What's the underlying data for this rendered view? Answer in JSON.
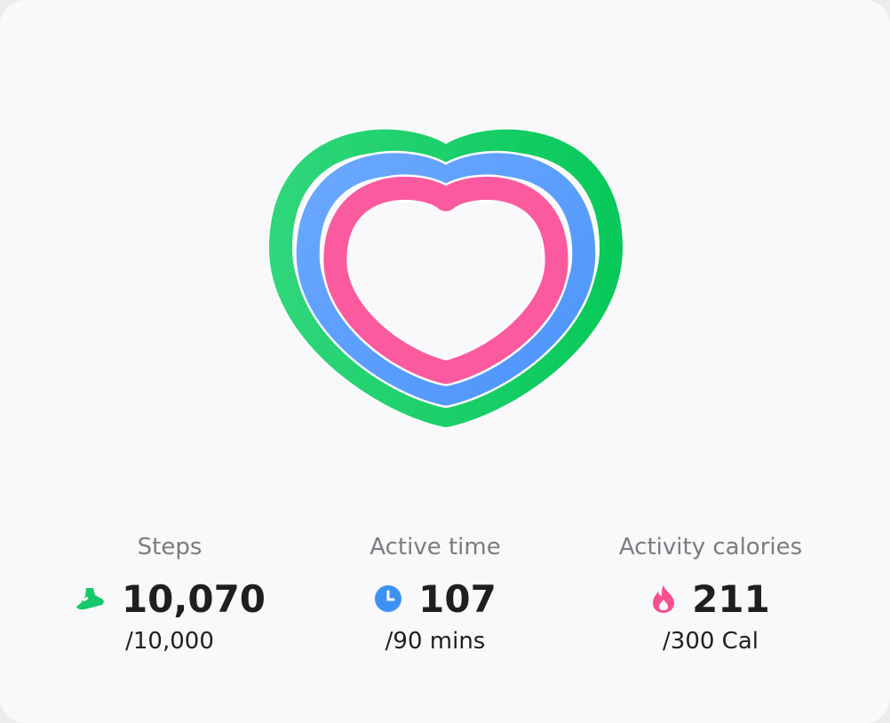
{
  "stats": [
    {
      "label": "Steps",
      "value": "10,070",
      "goal": "/10,000"
    },
    {
      "label": "Active time",
      "value": "107",
      "goal": "/90 mins"
    },
    {
      "label": "Activity calories",
      "value": "211",
      "goal": "/300 Cal"
    }
  ]
}
